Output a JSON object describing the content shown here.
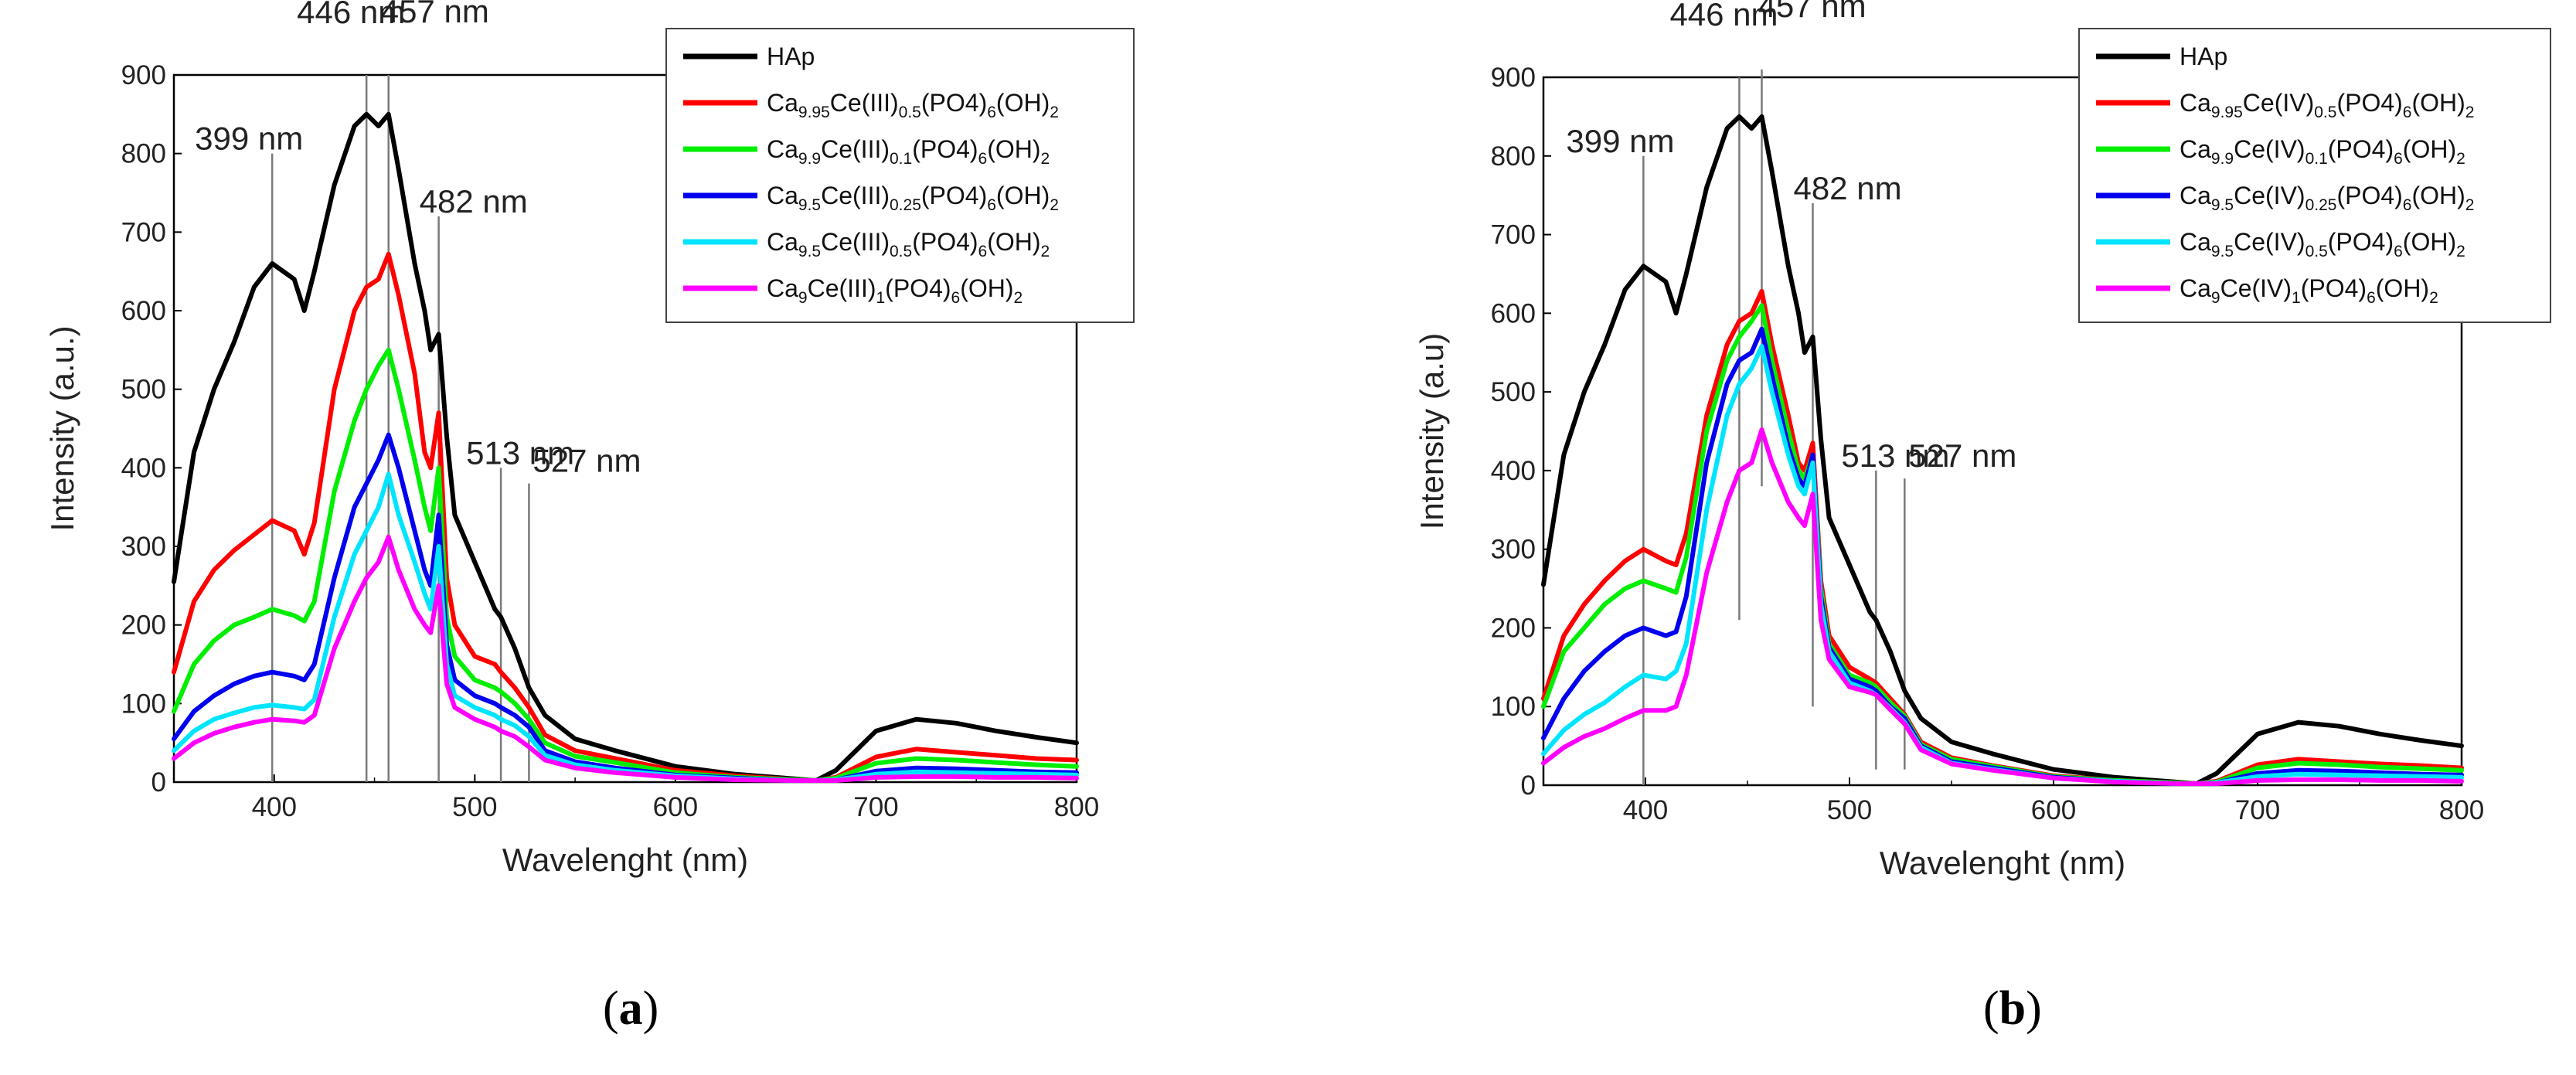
{
  "chart_data": [
    {
      "type": "line",
      "panel_label": "a",
      "xlabel": "Wavelenght (nm)",
      "ylabel": "Intensity (a.u.)",
      "xlim": [
        350,
        800
      ],
      "ylim": [
        0,
        900
      ],
      "xticks": [
        400,
        500,
        600,
        700,
        800
      ],
      "yticks": [
        0,
        100,
        200,
        300,
        400,
        500,
        600,
        700,
        800,
        900
      ],
      "legend_position": "top-right",
      "annotations": [
        {
          "text": "399 nm",
          "x": 399,
          "line_top": 800,
          "line_bottom": 0
        },
        {
          "text": "446 nm",
          "x": 446,
          "line_top": 900,
          "line_bottom": 0
        },
        {
          "text": "457 nm",
          "x": 457,
          "line_top": 900,
          "line_bottom": 0
        },
        {
          "text": "482 nm",
          "x": 482,
          "line_top": 720,
          "line_bottom": 0
        },
        {
          "text": "513 nm",
          "x": 513,
          "line_top": 400,
          "line_bottom": 0
        },
        {
          "text": "527 nm",
          "x": 527,
          "line_top": 380,
          "line_bottom": 0
        }
      ],
      "x": [
        350,
        360,
        370,
        380,
        390,
        399,
        410,
        415,
        420,
        430,
        440,
        446,
        452,
        457,
        462,
        470,
        475,
        478,
        482,
        486,
        490,
        500,
        510,
        513,
        520,
        527,
        535,
        550,
        570,
        600,
        630,
        660,
        670,
        680,
        700,
        720,
        740,
        760,
        780,
        800
      ],
      "series": [
        {
          "name": "HAp",
          "color": "#000000",
          "values": [
            255,
            420,
            500,
            560,
            630,
            660,
            640,
            600,
            650,
            760,
            835,
            850,
            835,
            850,
            780,
            660,
            600,
            550,
            570,
            440,
            340,
            280,
            220,
            210,
            170,
            120,
            85,
            55,
            40,
            20,
            10,
            4,
            2,
            15,
            65,
            80,
            75,
            65,
            57,
            50
          ]
        },
        {
          "name": "Ca9.95Ce(III)0.5(PO4)6(OH)2",
          "color": "#ff0000",
          "values": [
            140,
            230,
            270,
            295,
            315,
            333,
            320,
            290,
            330,
            500,
            600,
            630,
            640,
            672,
            620,
            520,
            420,
            400,
            470,
            260,
            200,
            160,
            150,
            140,
            120,
            95,
            60,
            40,
            30,
            15,
            8,
            3,
            2,
            6,
            32,
            42,
            38,
            34,
            30,
            28
          ]
        },
        {
          "name": "Ca9.9Ce(III)0.1(PO4)6(OH)2",
          "color": "#00ee00",
          "values": [
            90,
            150,
            180,
            200,
            210,
            220,
            212,
            205,
            230,
            370,
            460,
            500,
            530,
            550,
            500,
            410,
            350,
            320,
            400,
            210,
            160,
            130,
            120,
            115,
            100,
            80,
            50,
            33,
            25,
            12,
            6,
            3,
            2,
            5,
            24,
            30,
            28,
            25,
            22,
            20
          ]
        },
        {
          "name": "Ca9.5Ce(III)0.25(PO4)6(OH)2",
          "color": "#0000ee",
          "values": [
            55,
            90,
            110,
            125,
            135,
            140,
            135,
            130,
            150,
            260,
            350,
            380,
            410,
            442,
            400,
            320,
            270,
            250,
            340,
            175,
            130,
            110,
            100,
            95,
            85,
            70,
            40,
            26,
            18,
            9,
            5,
            2,
            2,
            3,
            14,
            18,
            17,
            15,
            13,
            12
          ]
        },
        {
          "name": "Ca9.5Ce(III)0.5(PO4)6(OH)2",
          "color": "#00e5ff",
          "values": [
            40,
            65,
            80,
            88,
            95,
            98,
            95,
            93,
            105,
            210,
            290,
            320,
            350,
            392,
            340,
            280,
            240,
            220,
            300,
            150,
            110,
            95,
            85,
            80,
            72,
            58,
            34,
            22,
            15,
            8,
            4,
            2,
            2,
            3,
            10,
            13,
            12,
            11,
            10,
            9
          ]
        },
        {
          "name": "Ca9Ce(III)1(PO4)6(OH)2",
          "color": "#ff00ff",
          "values": [
            30,
            50,
            62,
            70,
            76,
            80,
            78,
            76,
            85,
            170,
            230,
            260,
            280,
            312,
            270,
            220,
            200,
            190,
            250,
            125,
            95,
            80,
            70,
            65,
            58,
            45,
            28,
            18,
            12,
            6,
            3,
            2,
            2,
            2,
            6,
            7,
            7,
            6,
            6,
            5
          ]
        }
      ],
      "legend": {
        "entries": [
          {
            "plain": "HAp"
          },
          {
            "base": "Ca",
            "s1": "9.95",
            "mid": "Ce(III)",
            "s2": "0.5",
            "tail": "(PO4)",
            "s3": "6",
            "end": "(OH)",
            "s4": "2"
          },
          {
            "base": "Ca",
            "s1": "9.9",
            "mid": "Ce(III)",
            "s2": "0.1",
            "tail": "(PO4)",
            "s3": "6",
            "end": "(OH)",
            "s4": "2"
          },
          {
            "base": "Ca",
            "s1": "9.5",
            "mid": "Ce(III)",
            "s2": "0.25",
            "tail": "(PO4)",
            "s3": "6",
            "end": "(OH)",
            "s4": "2"
          },
          {
            "base": "Ca",
            "s1": "9.5",
            "mid": "Ce(III)",
            "s2": "0.5",
            "tail": "(PO4)",
            "s3": "6",
            "end": "(OH)",
            "s4": "2"
          },
          {
            "base": "Ca",
            "s1": "9",
            "mid": "Ce(III)",
            "s2": "1",
            "tail": "(PO4)",
            "s3": "6",
            "end": "(OH)",
            "s4": "2"
          }
        ]
      }
    },
    {
      "type": "line",
      "panel_label": "b",
      "xlabel": "Wavelenght (nm)",
      "ylabel": "Intensity (a.u)",
      "xlim": [
        350,
        800
      ],
      "ylim": [
        0,
        900
      ],
      "xticks": [
        400,
        500,
        600,
        700,
        800
      ],
      "yticks": [
        0,
        100,
        200,
        300,
        400,
        500,
        600,
        700,
        800,
        900
      ],
      "legend_position": "top-right",
      "annotations": [
        {
          "text": "399 nm",
          "x": 399,
          "line_top": 800,
          "line_bottom": 0
        },
        {
          "text": "446 nm",
          "x": 446,
          "line_top": 900,
          "line_bottom": 210
        },
        {
          "text": "457 nm",
          "x": 457,
          "line_top": 910,
          "line_bottom": 380
        },
        {
          "text": "482 nm",
          "x": 482,
          "line_top": 740,
          "line_bottom": 100
        },
        {
          "text": "513 nm",
          "x": 513,
          "line_top": 400,
          "line_bottom": 20
        },
        {
          "text": "527 nm",
          "x": 527,
          "line_top": 390,
          "line_bottom": 20
        }
      ],
      "x": [
        350,
        360,
        370,
        380,
        390,
        399,
        410,
        415,
        420,
        430,
        440,
        446,
        452,
        457,
        462,
        470,
        475,
        478,
        482,
        486,
        490,
        500,
        510,
        513,
        520,
        527,
        535,
        550,
        570,
        600,
        630,
        660,
        670,
        680,
        700,
        720,
        740,
        760,
        780,
        800
      ],
      "series": [
        {
          "name": "HAp",
          "color": "#000000",
          "values": [
            255,
            420,
            500,
            560,
            630,
            660,
            640,
            600,
            650,
            760,
            835,
            850,
            835,
            850,
            780,
            660,
            600,
            550,
            570,
            440,
            340,
            280,
            220,
            210,
            170,
            120,
            85,
            55,
            40,
            20,
            10,
            4,
            2,
            15,
            65,
            80,
            75,
            65,
            57,
            50
          ]
        },
        {
          "name": "Ca9.95Ce(IV)0.5(PO4)6(OH)2",
          "color": "#ff0000",
          "values": [
            110,
            190,
            230,
            260,
            285,
            300,
            285,
            280,
            320,
            470,
            560,
            590,
            600,
            628,
            560,
            470,
            410,
            400,
            435,
            260,
            190,
            150,
            135,
            130,
            110,
            90,
            55,
            35,
            25,
            12,
            6,
            3,
            2,
            5,
            26,
            33,
            30,
            27,
            25,
            22
          ]
        },
        {
          "name": "Ca9.9Ce(IV)0.1(PO4)6(OH)2",
          "color": "#00ee00",
          "values": [
            100,
            170,
            200,
            230,
            250,
            260,
            250,
            245,
            290,
            450,
            540,
            570,
            590,
            610,
            540,
            450,
            400,
            390,
            420,
            250,
            180,
            140,
            130,
            125,
            105,
            88,
            52,
            33,
            24,
            11,
            6,
            3,
            2,
            4,
            22,
            28,
            26,
            23,
            21,
            19
          ]
        },
        {
          "name": "Ca9.5Ce(IV)0.25(PO4)6(OH)2",
          "color": "#0000ee",
          "values": [
            60,
            110,
            145,
            170,
            190,
            200,
            190,
            195,
            240,
            410,
            510,
            540,
            550,
            580,
            520,
            430,
            390,
            380,
            420,
            240,
            175,
            135,
            125,
            120,
            100,
            85,
            50,
            30,
            22,
            10,
            5,
            2,
            2,
            3,
            15,
            19,
            18,
            16,
            14,
            13
          ]
        },
        {
          "name": "Ca9.5Ce(IV)0.5(PO4)6(OH)2",
          "color": "#00e5ff",
          "values": [
            40,
            70,
            90,
            105,
            125,
            140,
            135,
            145,
            180,
            350,
            470,
            510,
            530,
            558,
            500,
            420,
            380,
            370,
            410,
            230,
            170,
            130,
            120,
            115,
            98,
            80,
            48,
            28,
            20,
            9,
            5,
            2,
            2,
            3,
            11,
            14,
            13,
            12,
            11,
            10
          ]
        },
        {
          "name": "Ca9Ce(IV)1(PO4)6(OH)2",
          "color": "#ff00ff",
          "values": [
            28,
            48,
            62,
            72,
            85,
            95,
            95,
            100,
            140,
            270,
            360,
            400,
            410,
            452,
            410,
            360,
            340,
            330,
            370,
            210,
            160,
            125,
            118,
            115,
            96,
            78,
            45,
            27,
            19,
            9,
            4,
            2,
            2,
            2,
            6,
            7,
            7,
            6,
            6,
            5
          ]
        }
      ],
      "legend": {
        "entries": [
          {
            "plain": "HAp"
          },
          {
            "base": "Ca",
            "s1": "9.95",
            "mid": "Ce(IV)",
            "s2": "0.5",
            "tail": "(PO4)",
            "s3": "6",
            "end": "(OH)",
            "s4": "2"
          },
          {
            "base": "Ca",
            "s1": "9.9",
            "mid": "Ce(IV)",
            "s2": "0.1",
            "tail": "(PO4)",
            "s3": "6",
            "end": "(OH)",
            "s4": "2"
          },
          {
            "base": "Ca",
            "s1": "9.5",
            "mid": "Ce(IV)",
            "s2": "0.25",
            "tail": "(PO4)",
            "s3": "6",
            "end": "(OH)",
            "s4": "2"
          },
          {
            "base": "Ca",
            "s1": "9.5",
            "mid": "Ce(IV)",
            "s2": "0.5",
            "tail": "(PO4)",
            "s3": "6",
            "end": "(OH)",
            "s4": "2"
          },
          {
            "base": "Ca",
            "s1": "9",
            "mid": "Ce(IV)",
            "s2": "1",
            "tail": "(PO4)",
            "s3": "6",
            "end": "(OH)",
            "s4": "2"
          }
        ]
      }
    }
  ]
}
